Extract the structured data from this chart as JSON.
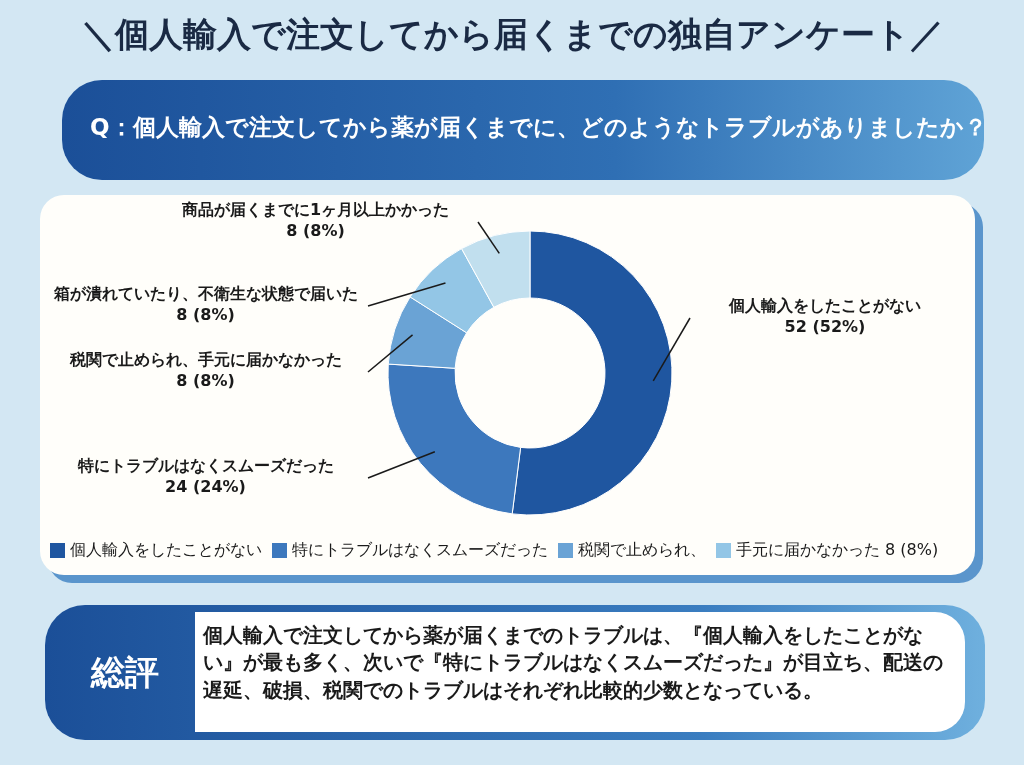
{
  "chart_data": {
    "type": "donut",
    "title": "＼個人輸入で注文してから届くまでの独自アンケート／",
    "subtitle": "Q：個人輸入で注文してから薬が届くまでに、どのようなトラブルがありましたか？",
    "categories": [
      "個人輸入をしたことがない",
      "特にトラブルはなくスムーズだった",
      "税関で止められ、手元に届かなかった",
      "箱が潰れていたり、不衛生な状態で届いた",
      "商品が届くまでに1ヶ月以上かかった"
    ],
    "values": [
      52,
      24,
      8,
      8,
      8
    ],
    "value_labels": [
      "52 (52%)",
      "24 (24%)",
      "8 (8%)",
      "8 (8%)",
      "8 (8%)"
    ],
    "colors": [
      "#1f56a0",
      "#3d78bd",
      "#6aa3d5",
      "#93c6e6",
      "#c1dfee"
    ],
    "annotations": [
      "個人輸入をしたことがない",
      "特にトラブルはなくスムーズだった",
      "税関で止められ、",
      "手元に届かなかった 8 (8%)",
      "総評",
      "個人輸入で注文してから薬が届くまでのトラブルは、『個人輸入をしたことがない』が最も多く、次いで『特にトラブルはなくスムーズだった』が目立ち、配送の遅延、破損、税関でのトラブルはそれぞれ比較的少数となっている。"
    ]
  }
}
